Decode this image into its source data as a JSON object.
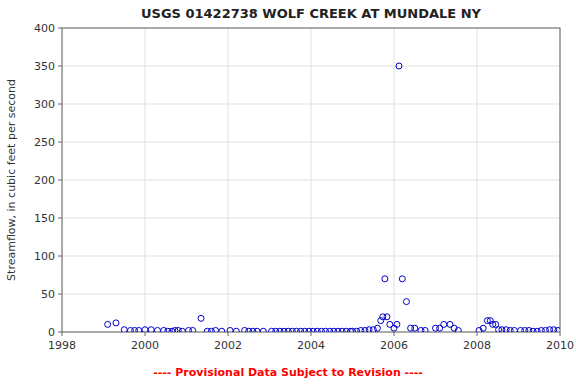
{
  "chart_data": {
    "type": "scatter",
    "title": "USGS 01422738 WOLF CREEK AT MUNDALE NY",
    "ylabel": "Streamflow, in cubic feet per second",
    "annotations": [
      {
        "text": "---- Provisional Data Subject to Revision ----",
        "color": "#FF0000"
      }
    ],
    "color": "#0000CC",
    "marker": "circle",
    "grid": true,
    "xlim": [
      1998,
      2010
    ],
    "ylim": [
      0,
      400
    ],
    "xticks": [
      1998,
      2000,
      2002,
      2004,
      2006,
      2008,
      2010
    ],
    "yticks": [
      0,
      50,
      100,
      150,
      200,
      250,
      300,
      350,
      400
    ],
    "x": [
      1999.1,
      1999.3,
      1999.5,
      1999.65,
      1999.75,
      1999.85,
      2000.0,
      2000.15,
      2000.3,
      2000.45,
      2000.55,
      2000.65,
      2000.72,
      2000.8,
      2000.9,
      2001.05,
      2001.15,
      2001.35,
      2001.5,
      2001.6,
      2001.7,
      2001.85,
      2002.05,
      2002.2,
      2002.4,
      2002.5,
      2002.6,
      2002.7,
      2002.85,
      2003.05,
      2003.15,
      2003.25,
      2003.35,
      2003.45,
      2003.55,
      2003.65,
      2003.75,
      2003.85,
      2003.95,
      2004.05,
      2004.15,
      2004.25,
      2004.35,
      2004.45,
      2004.55,
      2004.65,
      2004.75,
      2004.85,
      2004.95,
      2005.0,
      2005.1,
      2005.2,
      2005.3,
      2005.4,
      2005.5,
      2005.6,
      2005.68,
      2005.73,
      2005.78,
      2005.83,
      2005.9,
      2006.0,
      2006.07,
      2006.12,
      2006.2,
      2006.3,
      2006.4,
      2006.5,
      2006.65,
      2006.75,
      2007.0,
      2007.1,
      2007.2,
      2007.35,
      2007.45,
      2007.55,
      2008.05,
      2008.15,
      2008.25,
      2008.32,
      2008.38,
      2008.45,
      2008.52,
      2008.6,
      2008.7,
      2008.8,
      2008.9,
      2009.05,
      2009.15,
      2009.25,
      2009.35,
      2009.45,
      2009.55,
      2009.65,
      2009.75,
      2009.85,
      2009.95
    ],
    "values": [
      10,
      12,
      3,
      2,
      2,
      2,
      3,
      3,
      2,
      2,
      1,
      1,
      2,
      2,
      1,
      2,
      2,
      18,
      1,
      1,
      2,
      1,
      2,
      1,
      2,
      1,
      1,
      1,
      1,
      1,
      1,
      1,
      1,
      1,
      1,
      1,
      1,
      1,
      1,
      1,
      1,
      1,
      1,
      1,
      1,
      1,
      1,
      1,
      1,
      1,
      1,
      2,
      2,
      3,
      3,
      5,
      15,
      20,
      70,
      20,
      10,
      5,
      10,
      350,
      70,
      40,
      5,
      5,
      2,
      2,
      5,
      5,
      10,
      10,
      5,
      2,
      2,
      5,
      15,
      15,
      10,
      10,
      3,
      3,
      3,
      2,
      2,
      2,
      2,
      2,
      1,
      1,
      2,
      2,
      3,
      3,
      2
    ]
  }
}
